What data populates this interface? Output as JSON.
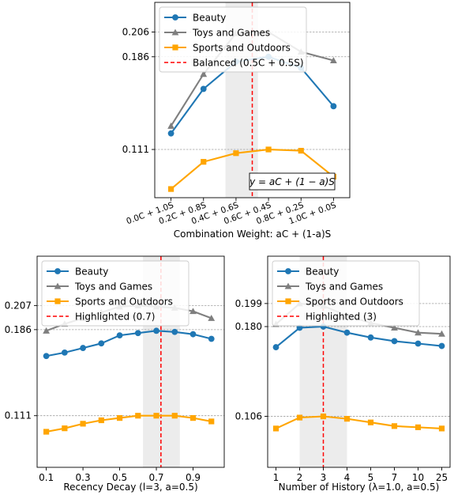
{
  "chart_data": [
    {
      "type": "line",
      "xlabel": "Combination Weight: aC + (1-a)S",
      "categories": [
        "0.0C + 1.0S",
        "0.2C + 0.8S",
        "0.4C + 0.6S",
        "0.6C + 0.4S",
        "0.8C + 0.2S",
        "1.0C + 0.0S"
      ],
      "x": [
        0.0,
        0.2,
        0.4,
        0.6,
        0.8,
        1.0
      ],
      "xlim": [
        -0.1,
        1.1
      ],
      "ylim": [
        0.072,
        0.23
      ],
      "yticks": [
        0.111,
        0.186,
        0.206
      ],
      "ytick_labels": [
        "0.111",
        "0.186",
        "0.206"
      ],
      "series": [
        {
          "name": "Beauty",
          "color": "#1f77b4",
          "marker": "circle",
          "values": [
            0.124,
            0.16,
            0.182,
            0.186,
            0.177,
            0.146
          ]
        },
        {
          "name": "Toys and Games",
          "color": "#7f7f7f",
          "marker": "triangle",
          "values": [
            0.13,
            0.172,
            0.205,
            0.206,
            0.19,
            0.183
          ]
        },
        {
          "name": "Sports and Outdoors",
          "color": "#ffa500",
          "marker": "square",
          "values": [
            0.079,
            0.101,
            0.108,
            0.111,
            0.11,
            0.089
          ]
        }
      ],
      "highlight_band": [
        0.335,
        0.535
      ],
      "vline": {
        "x": 0.5,
        "label": "Balanced (0.5C + 0.5S)",
        "color": "#ff0000"
      },
      "annotation": "y = aC + (1 − a)S",
      "legend": "top-left"
    },
    {
      "type": "line",
      "xlabel": "Recency Decay (l=3, a=0.5)",
      "x": [
        0.1,
        0.2,
        0.3,
        0.4,
        0.5,
        0.6,
        0.7,
        0.8,
        0.9,
        1.0
      ],
      "xticks": [
        0.1,
        0.3,
        0.5,
        0.7,
        0.9
      ],
      "xtick_labels": [
        "0.1",
        "0.3",
        "0.5",
        "0.7",
        "0.9"
      ],
      "xlim": [
        0.05,
        1.07
      ],
      "ylim": [
        0.066,
        0.25
      ],
      "yticks": [
        0.111,
        0.186,
        0.207
      ],
      "ytick_labels": [
        "0.111",
        "0.186",
        "0.207"
      ],
      "series": [
        {
          "name": "Beauty",
          "color": "#1f77b4",
          "marker": "circle",
          "values": [
            0.163,
            0.166,
            0.17,
            0.174,
            0.181,
            0.183,
            0.185,
            0.184,
            0.182,
            0.178
          ]
        },
        {
          "name": "Toys and Games",
          "color": "#7f7f7f",
          "marker": "triangle",
          "values": [
            0.185,
            0.191,
            0.196,
            0.201,
            0.206,
            0.207,
            0.206,
            0.205,
            0.202,
            0.196
          ]
        },
        {
          "name": "Sports and Outdoors",
          "color": "#ffa500",
          "marker": "square",
          "values": [
            0.097,
            0.1,
            0.104,
            0.107,
            0.109,
            0.111,
            0.111,
            0.111,
            0.109,
            0.106
          ]
        }
      ],
      "highlight_band": [
        0.627,
        0.828
      ],
      "vline": {
        "x": 0.725,
        "label": "Highlighted (0.7)",
        "color": "#ff0000"
      },
      "legend": "top-left"
    },
    {
      "type": "line",
      "xlabel": "Number of History (λ=1.0, a=0.5)",
      "x": [
        1,
        2,
        3,
        4,
        5,
        6,
        7,
        8
      ],
      "xticks": [
        1,
        2,
        3,
        4,
        5,
        6,
        7,
        8
      ],
      "xtick_labels": [
        "1",
        "2",
        "3",
        "4",
        "5",
        "7",
        "10",
        "25"
      ],
      "xlim": [
        0.65,
        8.35
      ],
      "ylim": [
        0.064,
        0.238
      ],
      "yticks": [
        0.106,
        0.18,
        0.199
      ],
      "ytick_labels": [
        "0.106",
        "0.180",
        "0.199"
      ],
      "series": [
        {
          "name": "Beauty",
          "color": "#1f77b4",
          "marker": "circle",
          "values": [
            0.163,
            0.179,
            0.18,
            0.175,
            0.171,
            0.168,
            0.166,
            0.164
          ]
        },
        {
          "name": "Toys and Games",
          "color": "#7f7f7f",
          "marker": "triangle",
          "values": [
            0.182,
            0.199,
            0.197,
            0.189,
            0.183,
            0.179,
            0.175,
            0.174
          ]
        },
        {
          "name": "Sports and Outdoors",
          "color": "#ffa500",
          "marker": "square",
          "values": [
            0.096,
            0.105,
            0.106,
            0.104,
            0.101,
            0.098,
            0.097,
            0.096
          ]
        }
      ],
      "highlight_band": [
        2.0,
        4.0
      ],
      "vline": {
        "x": 3,
        "label": "Highlighted (3)",
        "color": "#ff0000"
      },
      "legend": "top-left"
    }
  ]
}
